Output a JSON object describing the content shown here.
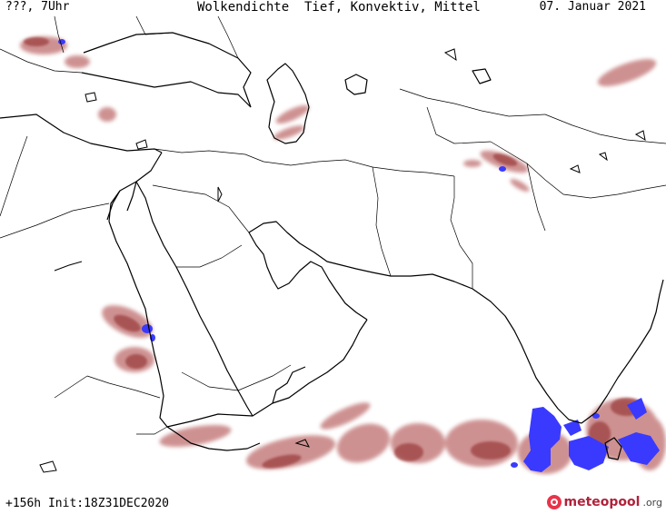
{
  "header": {
    "left": "???, 7Uhr",
    "center": "Wolkendichte  Tief, Konvektiv, Mittel",
    "right": "07. Januar 2021"
  },
  "footer": {
    "run": "+156h Init:18Z31DEC2020"
  },
  "logo": {
    "name": "meteopool",
    "tld": ".org"
  },
  "colors": {
    "cloud_low": "#c98585",
    "cloud_mid": "#9c3f3f",
    "convective": "#3a3aff",
    "coast": "#000000",
    "border": "#000000"
  }
}
